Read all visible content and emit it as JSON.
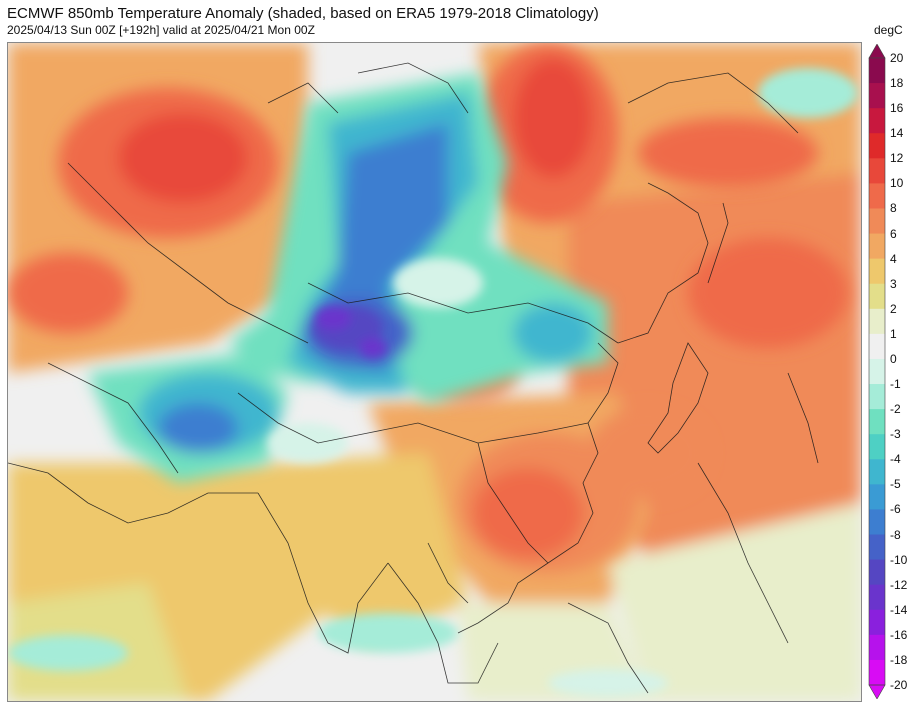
{
  "header": {
    "title": "ECMWF 850mb Temperature Anomaly (shaded, based on ERA5 1979-2018 Climatology)",
    "subtitle": "2025/04/13 Sun 00Z [+192h] valid at 2025/04/21 Mon 00Z"
  },
  "colorbar": {
    "unit": "degC",
    "labels": [
      "20",
      "18",
      "16",
      "14",
      "12",
      "10",
      "8",
      "6",
      "4",
      "3",
      "2",
      "1",
      "0",
      "-1",
      "-2",
      "-3",
      "-4",
      "-5",
      "-6",
      "-8",
      "-10",
      "-12",
      "-14",
      "-16",
      "-18",
      "-20"
    ],
    "colors": [
      "#8a0a4e",
      "#a8104e",
      "#c8183e",
      "#df2a2a",
      "#e8483a",
      "#ef6a4a",
      "#f08a58",
      "#f1a862",
      "#eec86c",
      "#e3de8a",
      "#e8eecb",
      "#f0f0f0",
      "#d6f3e8",
      "#a5ecd8",
      "#6fe0c0",
      "#4ed0c4",
      "#3fb6cf",
      "#3a9bd4",
      "#3d7ed0",
      "#4562c8",
      "#5546c2",
      "#6a34cc",
      "#8a20dd",
      "#b612ec",
      "#d80cf4"
    ]
  },
  "map": {
    "region": "East Asia",
    "field": "850mb temperature anomaly"
  }
}
